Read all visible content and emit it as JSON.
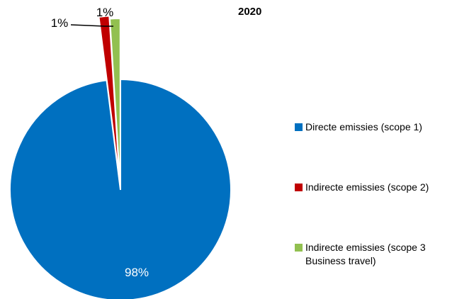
{
  "chart_data": {
    "type": "pie",
    "title": "2020",
    "categories": [
      "Directe emissies (scope 1)",
      "Indirecte emissies (scope 2)",
      "Indirecte emissies (scope 3 Business travel)"
    ],
    "values": [
      98,
      1,
      1
    ],
    "data_labels": [
      "98%",
      "1%",
      "1%"
    ],
    "colors": [
      "#0070C0",
      "#C00000",
      "#92C050"
    ],
    "legend_position": "right"
  }
}
